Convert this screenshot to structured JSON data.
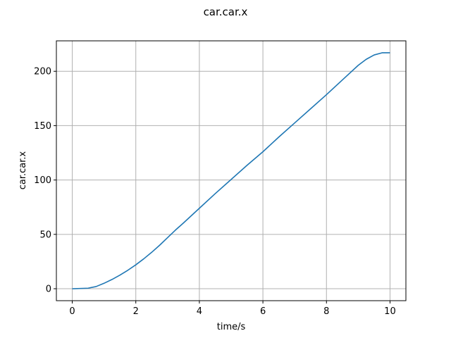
{
  "chart_data": {
    "type": "line",
    "title": "car.car.x",
    "xlabel": "time/s",
    "ylabel": "car.car.x",
    "xlim": [
      -0.5,
      10.5
    ],
    "ylim": [
      -11,
      228
    ],
    "xticks": [
      0,
      2,
      4,
      6,
      8,
      10
    ],
    "yticks": [
      0,
      50,
      100,
      150,
      200
    ],
    "grid": true,
    "colors": {
      "line": "#1f77b4"
    },
    "series": [
      {
        "x": [
          0,
          0.5,
          0.75,
          1.0,
          1.25,
          1.5,
          1.75,
          2.0,
          2.25,
          2.5,
          2.75,
          3.0,
          3.25,
          3.5,
          4.0,
          4.5,
          5.0,
          5.5,
          6.0,
          6.5,
          7.0,
          7.5,
          8.0,
          8.5,
          9.0,
          9.25,
          9.5,
          9.75,
          10.0
        ],
        "y": [
          0,
          0.5,
          2,
          5,
          8.5,
          12.5,
          17,
          22,
          27.5,
          33.5,
          40,
          47,
          54,
          60.5,
          74,
          87.5,
          100.5,
          113.5,
          126,
          139.5,
          152.5,
          165.5,
          178.5,
          192,
          205.5,
          211,
          215,
          217,
          217
        ]
      }
    ]
  }
}
